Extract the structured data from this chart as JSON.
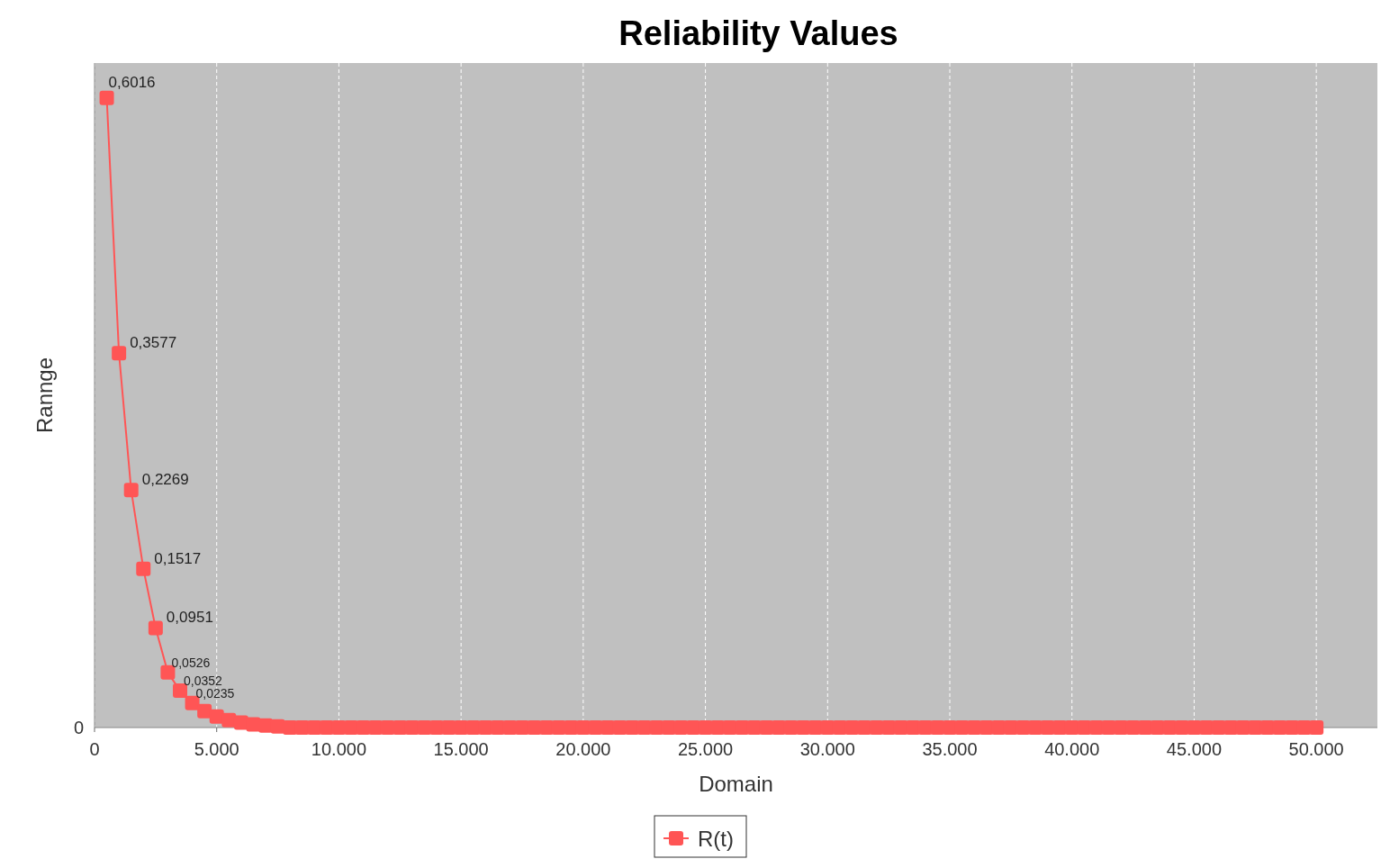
{
  "chart_data": {
    "type": "line",
    "title": "Reliability Values",
    "xlabel": "Domain",
    "ylabel": "Rannge",
    "x": [
      500,
      1000,
      1500,
      2000,
      2500,
      3000,
      3500,
      4000,
      4500,
      5000,
      5500,
      6000,
      6500,
      7000,
      7500,
      8000,
      8500,
      9000,
      9500,
      10000,
      10500,
      11000,
      11500,
      12000,
      12500,
      13000,
      13500,
      14000,
      14500,
      15000,
      15500,
      16000,
      16500,
      17000,
      17500,
      18000,
      18500,
      19000,
      19500,
      20000,
      20500,
      21000,
      21500,
      22000,
      22500,
      23000,
      23500,
      24000,
      24500,
      25000,
      25500,
      26000,
      26500,
      27000,
      27500,
      28000,
      28500,
      29000,
      29500,
      30000,
      30500,
      31000,
      31500,
      32000,
      32500,
      33000,
      33500,
      34000,
      34500,
      35000,
      35500,
      36000,
      36500,
      37000,
      37500,
      38000,
      38500,
      39000,
      39500,
      40000,
      40500,
      41000,
      41500,
      42000,
      42500,
      43000,
      43500,
      44000,
      44500,
      45000,
      45500,
      46000,
      46500,
      47000,
      47500,
      48000,
      48500,
      49000,
      49500,
      50000
    ],
    "series": [
      {
        "name": "R(t)",
        "color": "#ff5555",
        "values": [
          0.6016,
          0.3577,
          0.2269,
          0.1517,
          0.0951,
          0.0526,
          0.0352,
          0.0235,
          0.0157,
          0.0105,
          0.007,
          0.0047,
          0.003,
          0.002,
          0.001,
          0,
          0,
          0,
          0,
          0,
          0,
          0,
          0,
          0,
          0,
          0,
          0,
          0,
          0,
          0,
          0,
          0,
          0,
          0,
          0,
          0,
          0,
          0,
          0,
          0,
          0,
          0,
          0,
          0,
          0,
          0,
          0,
          0,
          0,
          0,
          0,
          0,
          0,
          0,
          0,
          0,
          0,
          0,
          0,
          0,
          0,
          0,
          0,
          0,
          0,
          0,
          0,
          0,
          0,
          0,
          0,
          0,
          0,
          0,
          0,
          0,
          0,
          0,
          0,
          0,
          0,
          0,
          0,
          0,
          0,
          0,
          0,
          0,
          0,
          0,
          0,
          0,
          0,
          0,
          0,
          0,
          0,
          0,
          0,
          0
        ],
        "value_labels": [
          "0,6016",
          "0,3577",
          "0,2269",
          "0,1517",
          "0,0951",
          "0,0526",
          "0,0352",
          "0,0235",
          null,
          null,
          null,
          null,
          null,
          null,
          null,
          null,
          null,
          null,
          null,
          null,
          null,
          null,
          null,
          null,
          null,
          null,
          null,
          null,
          null,
          null,
          null,
          null,
          null,
          null,
          null,
          null,
          null,
          null,
          null,
          null,
          null,
          null,
          null,
          null,
          null,
          null,
          null,
          null,
          null,
          null,
          null,
          null,
          null,
          null,
          null,
          null,
          null,
          null,
          null,
          null,
          null,
          null,
          null,
          null,
          null,
          null,
          null,
          null,
          null,
          null,
          null,
          null,
          null,
          null,
          null,
          null,
          null,
          null,
          null,
          null,
          null,
          null,
          null,
          null,
          null,
          null,
          null,
          null,
          null,
          null,
          null,
          null,
          null,
          null,
          null,
          null,
          null,
          null,
          null,
          null
        ]
      }
    ],
    "xlim": [
      0,
      52500
    ],
    "xticks": [
      0,
      {
        "value": 5000,
        "label": "5.000"
      },
      {
        "value": 10000,
        "label": "10.000"
      },
      {
        "value": 15000,
        "label": "15.000"
      },
      {
        "value": 20000,
        "label": "20.000"
      },
      {
        "value": 25000,
        "label": "25.000"
      },
      {
        "value": 30000,
        "label": "30.000"
      },
      {
        "value": 35000,
        "label": "35.000"
      },
      {
        "value": 40000,
        "label": "40.000"
      },
      {
        "value": 45000,
        "label": "45.000"
      },
      {
        "value": 50000,
        "label": "50.000"
      }
    ],
    "ylim": [
      0,
      0.635
    ],
    "annotations": [
      "0"
    ],
    "grid": "x",
    "legend": "bottom",
    "marker": "square",
    "line_style": "solid"
  }
}
